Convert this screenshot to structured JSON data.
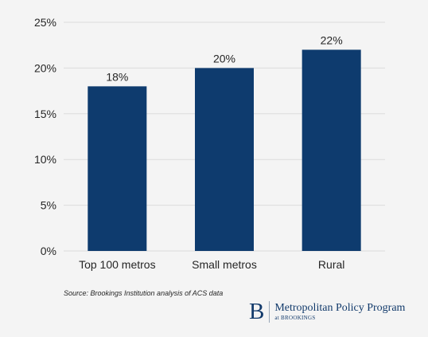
{
  "chart_data": {
    "type": "bar",
    "categories": [
      "Top 100 metros",
      "Small metros",
      "Rural"
    ],
    "values": [
      18,
      20,
      22
    ],
    "data_labels": [
      "18%",
      "20%",
      "22%"
    ],
    "ylim": [
      0,
      25
    ],
    "yticks": [
      0,
      5,
      10,
      15,
      20,
      25
    ],
    "ytick_labels": [
      "0%",
      "5%",
      "10%",
      "15%",
      "20%",
      "25%"
    ],
    "title": "",
    "xlabel": "",
    "ylabel": "",
    "grid": true,
    "bar_color": "#0e3b6e",
    "grid_color": "#dcdcdc"
  },
  "source": "Source: Brookings Institution analysis of ACS data",
  "brand": {
    "logo": "B",
    "name": "Metropolitan Policy Program",
    "sub": "at BROOKINGS",
    "color": "#123a6b"
  }
}
